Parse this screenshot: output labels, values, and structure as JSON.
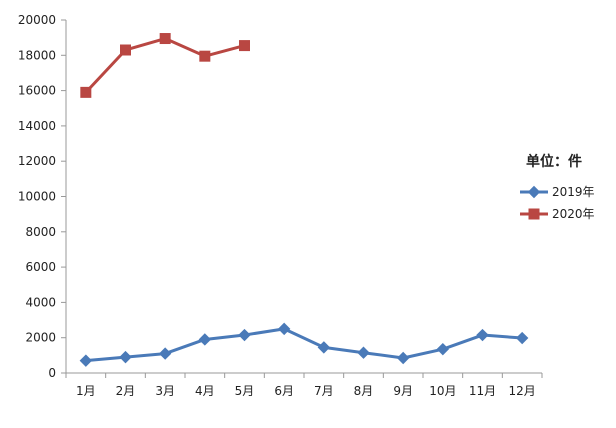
{
  "chart_data": {
    "type": "line",
    "categories": [
      "1月",
      "2月",
      "3月",
      "4月",
      "5月",
      "6月",
      "7月",
      "8月",
      "9月",
      "10月",
      "11月",
      "12月"
    ],
    "series": [
      {
        "name": "2019年",
        "color": "#4a7ab8",
        "marker": "diamond",
        "values": [
          700,
          900,
          1100,
          1900,
          2150,
          2500,
          1450,
          1150,
          850,
          1350,
          2150,
          1980
        ]
      },
      {
        "name": "2020年",
        "color": "#b94742",
        "marker": "square",
        "values": [
          15900,
          18300,
          18950,
          17950,
          18550,
          null,
          null,
          null,
          null,
          null,
          null,
          null
        ]
      }
    ],
    "yticks": [
      0,
      2000,
      4000,
      6000,
      8000,
      10000,
      12000,
      14000,
      16000,
      18000,
      20000
    ],
    "ylim": [
      0,
      20000
    ],
    "unit_label": "单位：件",
    "legend_position": "right",
    "grid": false
  }
}
